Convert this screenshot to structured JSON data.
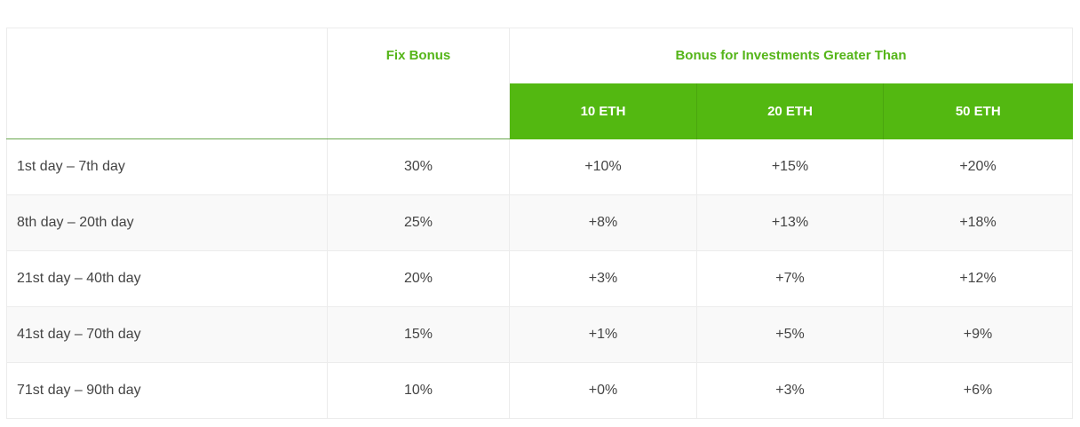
{
  "table": {
    "headers": {
      "period": "",
      "fix_bonus": "Fix Bonus",
      "group": "Bonus for Investments Greater Than",
      "tiers": [
        "10 ETH",
        "20 ETH",
        "50 ETH"
      ]
    },
    "rows": [
      {
        "period": "1st day – 7th day",
        "fix": "30%",
        "t10": "+10%",
        "t20": "+15%",
        "t50": "+20%"
      },
      {
        "period": "8th day – 20th day",
        "fix": "25%",
        "t10": "+8%",
        "t20": "+13%",
        "t50": "+18%"
      },
      {
        "period": "21st day – 40th day",
        "fix": "20%",
        "t10": "+3%",
        "t20": "+7%",
        "t50": "+12%"
      },
      {
        "period": "41st day – 70th day",
        "fix": "15%",
        "t10": "+1%",
        "t20": "+5%",
        "t50": "+9%"
      },
      {
        "period": "71st day – 90th day",
        "fix": "10%",
        "t10": "+0%",
        "t20": "+3%",
        "t50": "+6%"
      }
    ]
  },
  "colors": {
    "accent_green": "#53b811",
    "header_text_green": "#55b519",
    "row_alt_bg": "#f9f9f9",
    "border": "#ececec"
  }
}
